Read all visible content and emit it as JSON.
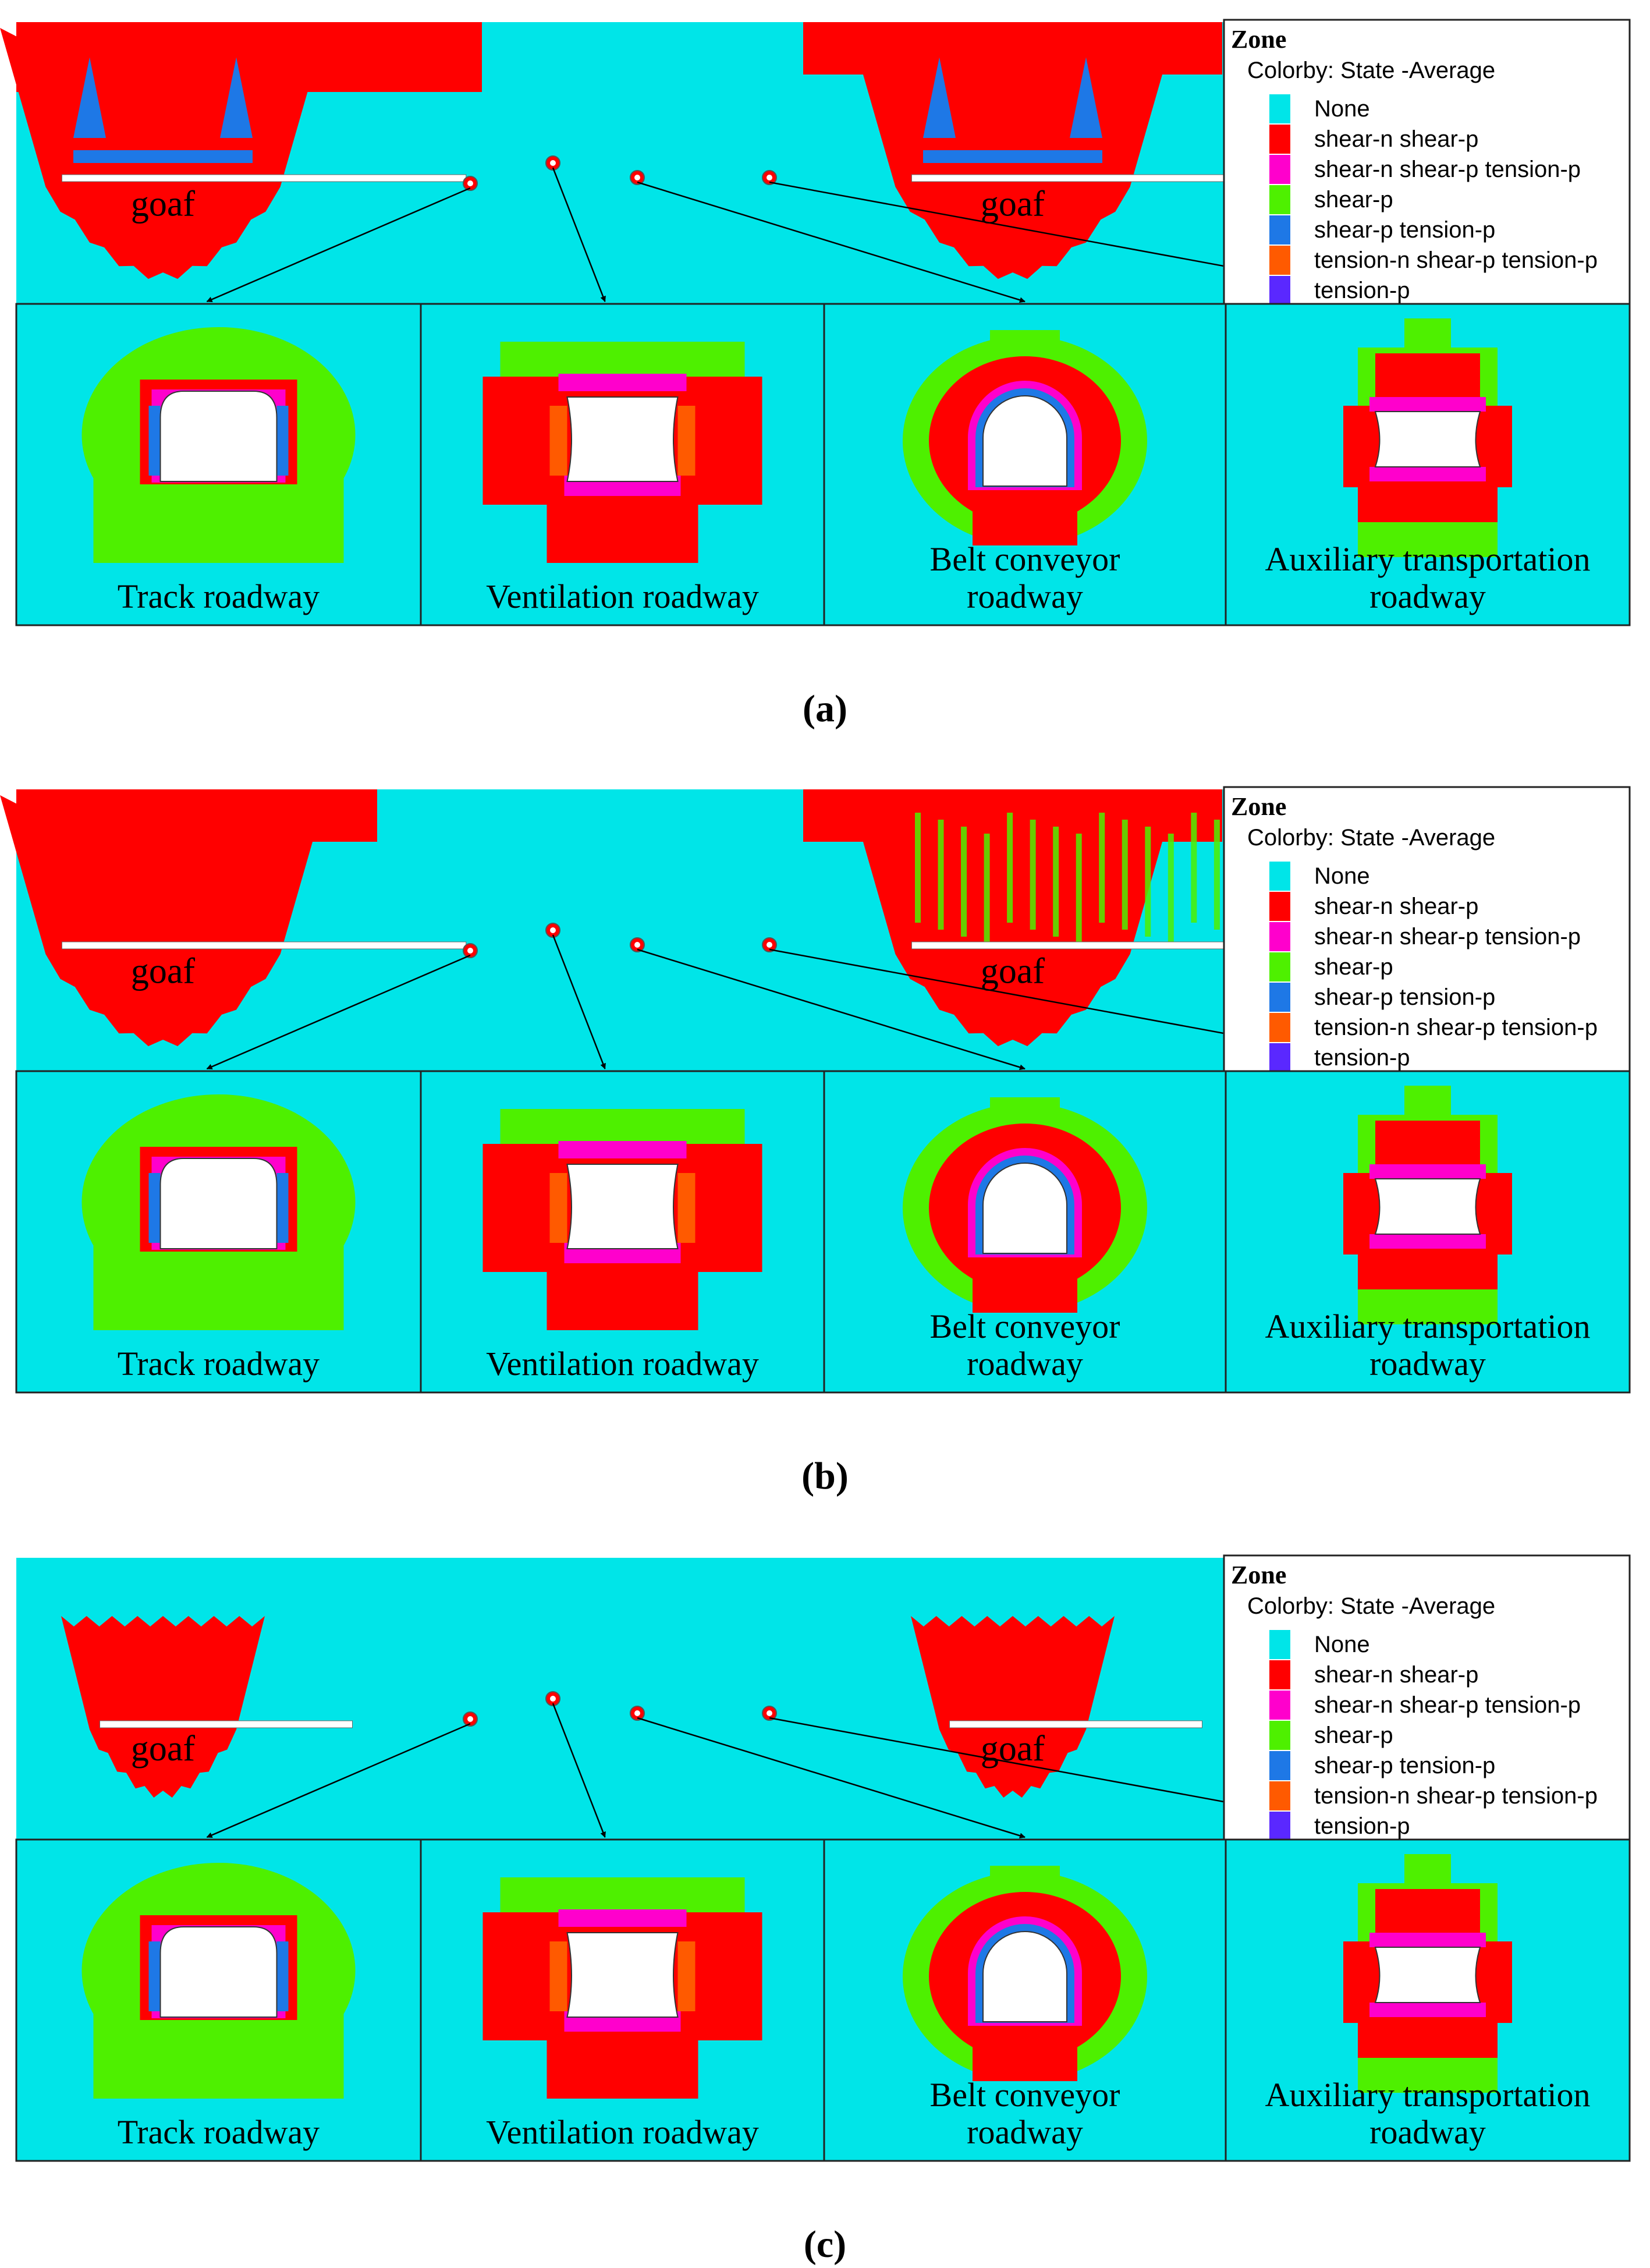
{
  "colors": {
    "none": "#00e5e8",
    "shear_n_shear_p": "#ff0000",
    "shear_n_shear_p_tension_p": "#ff00cc",
    "shear_p": "#4ef000",
    "shear_p_tension_p": "#1e78e6",
    "tension_n_shear_p_tension_p": "#ff5a00",
    "tension_p": "#5a28ff",
    "opening": "#ffffff",
    "border": "#222222"
  },
  "legend": {
    "title": "Zone",
    "subtitle": "Colorby: State  -Average",
    "items": [
      {
        "label": "None",
        "color_key": "none"
      },
      {
        "label": "shear-n shear-p",
        "color_key": "shear_n_shear_p"
      },
      {
        "label": "shear-n shear-p tension-p",
        "color_key": "shear_n_shear_p_tension_p"
      },
      {
        "label": "shear-p",
        "color_key": "shear_p"
      },
      {
        "label": "shear-p tension-p",
        "color_key": "shear_p_tension_p"
      },
      {
        "label": "tension-n shear-p tension-p",
        "color_key": "tension_n_shear_p_tension_p"
      },
      {
        "label": "tension-p",
        "color_key": "tension_p"
      }
    ]
  },
  "panels": [
    {
      "id": "a",
      "caption": "(a)",
      "goaf_label": "goaf",
      "roadways": [
        {
          "label_lines": [
            "Track roadway"
          ],
          "shape": "track"
        },
        {
          "label_lines": [
            "Ventilation roadway"
          ],
          "shape": "ventilation"
        },
        {
          "label_lines": [
            "Belt conveyor",
            "roadway"
          ],
          "shape": "belt"
        },
        {
          "label_lines": [
            "Auxiliary transportation",
            "roadway"
          ],
          "shape": "auxiliary"
        }
      ]
    },
    {
      "id": "b",
      "caption": "(b)",
      "goaf_label": "goaf",
      "roadways": [
        {
          "label_lines": [
            "Track roadway"
          ],
          "shape": "track"
        },
        {
          "label_lines": [
            "Ventilation roadway"
          ],
          "shape": "ventilation"
        },
        {
          "label_lines": [
            "Belt conveyor",
            "roadway"
          ],
          "shape": "belt"
        },
        {
          "label_lines": [
            "Auxiliary transportation",
            "roadway"
          ],
          "shape": "auxiliary"
        }
      ]
    },
    {
      "id": "c",
      "caption": "(c)",
      "goaf_label": "goaf",
      "roadways": [
        {
          "label_lines": [
            "Track roadway"
          ],
          "shape": "track"
        },
        {
          "label_lines": [
            "Ventilation roadway"
          ],
          "shape": "ventilation"
        },
        {
          "label_lines": [
            "Belt conveyor",
            "roadway"
          ],
          "shape": "belt"
        },
        {
          "label_lines": [
            "Auxiliary transportation",
            "roadway"
          ],
          "shape": "auxiliary"
        }
      ]
    }
  ]
}
